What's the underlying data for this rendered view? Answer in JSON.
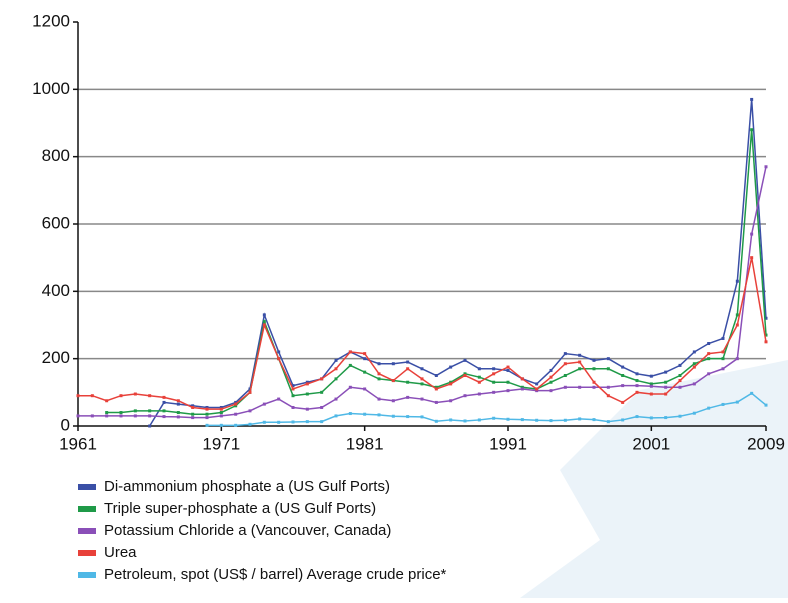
{
  "chart_data": {
    "type": "line",
    "x": [
      1961,
      1962,
      1963,
      1964,
      1965,
      1966,
      1967,
      1968,
      1969,
      1970,
      1971,
      1972,
      1973,
      1974,
      1975,
      1976,
      1977,
      1978,
      1979,
      1980,
      1981,
      1982,
      1983,
      1984,
      1985,
      1986,
      1987,
      1988,
      1989,
      1990,
      1991,
      1992,
      1993,
      1994,
      1995,
      1996,
      1997,
      1998,
      1999,
      2000,
      2001,
      2002,
      2003,
      2004,
      2005,
      2006,
      2007,
      2008,
      2009
    ],
    "series": [
      {
        "name": "Di-ammonium phosphate a (US Gulf Ports)",
        "color": "#3a4fa6",
        "values": [
          null,
          null,
          null,
          null,
          null,
          0,
          70,
          65,
          60,
          55,
          55,
          70,
          110,
          330,
          220,
          120,
          130,
          140,
          195,
          220,
          200,
          185,
          185,
          190,
          170,
          150,
          175,
          195,
          170,
          170,
          165,
          140,
          125,
          165,
          215,
          210,
          195,
          200,
          175,
          155,
          148,
          160,
          180,
          220,
          245,
          260,
          430,
          970,
          320
        ]
      },
      {
        "name": "Triple super-phosphate a (US Gulf Ports)",
        "color": "#1f9a48",
        "values": [
          null,
          null,
          40,
          40,
          45,
          45,
          45,
          40,
          35,
          35,
          40,
          60,
          100,
          310,
          200,
          90,
          95,
          100,
          140,
          180,
          160,
          140,
          135,
          130,
          125,
          115,
          130,
          155,
          145,
          130,
          130,
          115,
          110,
          130,
          150,
          170,
          170,
          170,
          150,
          135,
          125,
          130,
          150,
          185,
          200,
          200,
          330,
          880,
          270
        ]
      },
      {
        "name": "Potassium Chloride a (Vancouver, Canada)",
        "color": "#8a4fb8",
        "values": [
          30,
          30,
          30,
          30,
          30,
          30,
          28,
          27,
          25,
          25,
          30,
          35,
          45,
          65,
          80,
          55,
          50,
          55,
          80,
          115,
          110,
          80,
          75,
          85,
          80,
          70,
          75,
          90,
          95,
          100,
          105,
          110,
          105,
          105,
          115,
          115,
          115,
          115,
          120,
          120,
          118,
          115,
          115,
          125,
          155,
          170,
          200,
          570,
          770
        ]
      },
      {
        "name": "Urea",
        "color": "#e8413a",
        "values": [
          90,
          90,
          75,
          90,
          95,
          90,
          85,
          75,
          55,
          50,
          50,
          65,
          100,
          300,
          200,
          110,
          125,
          140,
          170,
          220,
          215,
          155,
          135,
          170,
          140,
          110,
          125,
          150,
          130,
          155,
          175,
          140,
          110,
          145,
          185,
          190,
          130,
          90,
          70,
          100,
          95,
          95,
          135,
          175,
          215,
          220,
          300,
          500,
          250
        ]
      },
      {
        "name": "Petroleum, spot (US$ / barrel) Average crude price*",
        "color": "#4fb8e6",
        "values": [
          null,
          null,
          null,
          null,
          null,
          null,
          null,
          null,
          null,
          2,
          2,
          2,
          5,
          11,
          11,
          12,
          13,
          13,
          30,
          37,
          35,
          33,
          29,
          28,
          27,
          14,
          18,
          15,
          18,
          23,
          20,
          19,
          17,
          16,
          17,
          21,
          19,
          13,
          18,
          28,
          24,
          25,
          29,
          38,
          53,
          64,
          71,
          97,
          62
        ]
      }
    ],
    "xlim": [
      1961,
      2009
    ],
    "xticks": [
      1961,
      1971,
      1981,
      1991,
      2001,
      2009
    ],
    "ylim": [
      0,
      1200
    ],
    "yticks": [
      0,
      200,
      400,
      600,
      800,
      1000,
      1200
    ],
    "grid": true
  }
}
